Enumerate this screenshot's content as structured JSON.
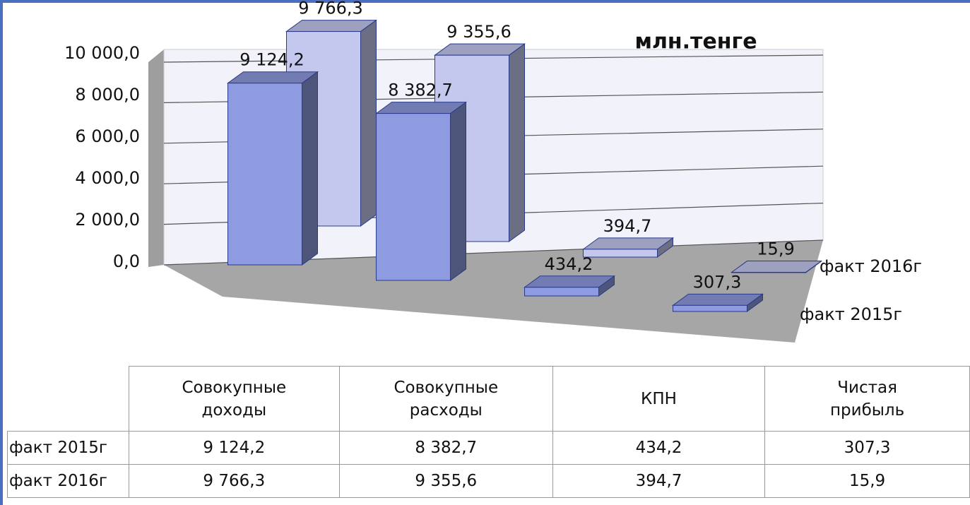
{
  "chart_data": {
    "type": "bar3d",
    "title": "млн.тенге",
    "categories": [
      "Совокупные доходы",
      "Совокупные расходы",
      "КПН",
      "Чистая прибыль"
    ],
    "series": [
      {
        "name": "факт 2015г",
        "color": "#8e9be0",
        "values": [
          9124.2,
          8382.7,
          434.2,
          307.3
        ],
        "value_labels": [
          "9 124,2",
          "8 382,7",
          "434,2",
          "307,3"
        ]
      },
      {
        "name": "факт 2016г",
        "color": "#c4c8ee",
        "values": [
          9766.3,
          9355.6,
          394.7,
          15.9
        ],
        "value_labels": [
          "9 766,3",
          "9 355,6",
          "394,7",
          "15,9"
        ]
      }
    ],
    "ylim": [
      0,
      10000
    ],
    "yticks": [
      {
        "value": 0,
        "label": "0,0"
      },
      {
        "value": 2000,
        "label": "2 000,0"
      },
      {
        "value": 4000,
        "label": "4 000,0"
      },
      {
        "value": 6000,
        "label": "6 000,0"
      },
      {
        "value": 8000,
        "label": "8 000,0"
      },
      {
        "value": 10000,
        "label": "10 000,0"
      }
    ],
    "grid": true
  }
}
